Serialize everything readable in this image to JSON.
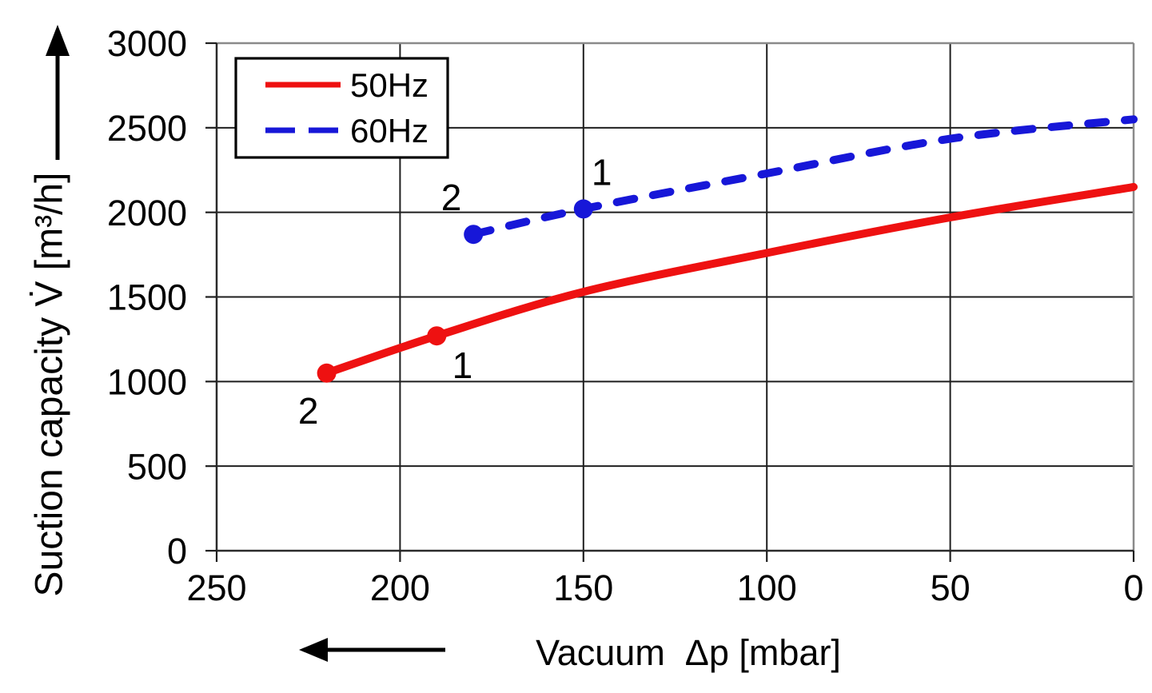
{
  "chart_data": {
    "type": "line",
    "title": "",
    "xlabel": "Vacuum  Δp [mbar]",
    "ylabel": "Suction capacity V̇ [m³/h]",
    "x_axis": {
      "unit": "mbar",
      "min": 0,
      "max": 250,
      "reversed": true,
      "ticks": [
        250,
        200,
        150,
        100,
        50,
        0
      ]
    },
    "y_axis": {
      "unit": "m³/h",
      "min": 0,
      "max": 3000,
      "ticks": [
        3000,
        2500,
        2000,
        1500,
        1000,
        500,
        0
      ]
    },
    "grid": true,
    "legend": {
      "position": "top-left"
    },
    "series": [
      {
        "name": "50Hz",
        "color": "#ee1111",
        "line_style": "solid",
        "points": [
          [
            220,
            1050
          ],
          [
            190,
            1270
          ],
          [
            150,
            1530
          ],
          [
            100,
            1760
          ],
          [
            50,
            1970
          ],
          [
            0,
            2150
          ]
        ],
        "markers": [
          {
            "label": "2",
            "at": [
              220,
              1050
            ],
            "label_at": [
              225,
              830
            ]
          },
          {
            "label": "1",
            "at": [
              190,
              1270
            ],
            "label_at": [
              183,
              1100
            ]
          }
        ]
      },
      {
        "name": "60Hz",
        "color": "#1717d8",
        "line_style": "dashed",
        "points": [
          [
            180,
            1870
          ],
          [
            150,
            2020
          ],
          [
            100,
            2230
          ],
          [
            50,
            2435
          ],
          [
            0,
            2550
          ]
        ],
        "markers": [
          {
            "label": "2",
            "at": [
              180,
              1870
            ],
            "label_at": [
              186,
              2090
            ]
          },
          {
            "label": "1",
            "at": [
              150,
              2020
            ],
            "label_at": [
              145,
              2240
            ]
          }
        ]
      }
    ],
    "colors": {
      "grid": "#1f1f1f",
      "border_top_right": "#8a8a8a",
      "axis": "#2b2b2b",
      "legend_border": "#000000",
      "arrow": "#000000"
    }
  }
}
